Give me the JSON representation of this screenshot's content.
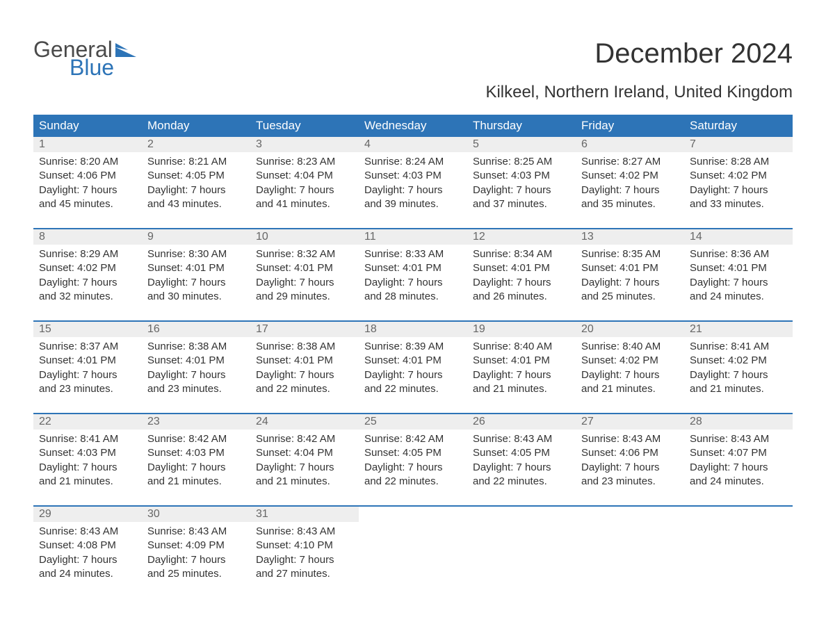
{
  "logo": {
    "general": "General",
    "blue": "Blue"
  },
  "header": {
    "title": "December 2024",
    "location": "Kilkeel, Northern Ireland, United Kingdom"
  },
  "colors": {
    "header_bg": "#2d74b7",
    "header_text": "#ffffff",
    "daynum_bg": "#eeeeee",
    "daynum_text": "#666666",
    "body_text": "#333333",
    "logo_gray": "#4a4a4a",
    "logo_blue": "#2d74b7"
  },
  "weekdays": [
    "Sunday",
    "Monday",
    "Tuesday",
    "Wednesday",
    "Thursday",
    "Friday",
    "Saturday"
  ],
  "labels": {
    "sunrise": "Sunrise:",
    "sunset": "Sunset:",
    "daylight": "Daylight:"
  },
  "days": [
    {
      "n": "1",
      "sr": "8:20 AM",
      "ss": "4:06 PM",
      "dl1": "7 hours",
      "dl2": "and 45 minutes."
    },
    {
      "n": "2",
      "sr": "8:21 AM",
      "ss": "4:05 PM",
      "dl1": "7 hours",
      "dl2": "and 43 minutes."
    },
    {
      "n": "3",
      "sr": "8:23 AM",
      "ss": "4:04 PM",
      "dl1": "7 hours",
      "dl2": "and 41 minutes."
    },
    {
      "n": "4",
      "sr": "8:24 AM",
      "ss": "4:03 PM",
      "dl1": "7 hours",
      "dl2": "and 39 minutes."
    },
    {
      "n": "5",
      "sr": "8:25 AM",
      "ss": "4:03 PM",
      "dl1": "7 hours",
      "dl2": "and 37 minutes."
    },
    {
      "n": "6",
      "sr": "8:27 AM",
      "ss": "4:02 PM",
      "dl1": "7 hours",
      "dl2": "and 35 minutes."
    },
    {
      "n": "7",
      "sr": "8:28 AM",
      "ss": "4:02 PM",
      "dl1": "7 hours",
      "dl2": "and 33 minutes."
    },
    {
      "n": "8",
      "sr": "8:29 AM",
      "ss": "4:02 PM",
      "dl1": "7 hours",
      "dl2": "and 32 minutes."
    },
    {
      "n": "9",
      "sr": "8:30 AM",
      "ss": "4:01 PM",
      "dl1": "7 hours",
      "dl2": "and 30 minutes."
    },
    {
      "n": "10",
      "sr": "8:32 AM",
      "ss": "4:01 PM",
      "dl1": "7 hours",
      "dl2": "and 29 minutes."
    },
    {
      "n": "11",
      "sr": "8:33 AM",
      "ss": "4:01 PM",
      "dl1": "7 hours",
      "dl2": "and 28 minutes."
    },
    {
      "n": "12",
      "sr": "8:34 AM",
      "ss": "4:01 PM",
      "dl1": "7 hours",
      "dl2": "and 26 minutes."
    },
    {
      "n": "13",
      "sr": "8:35 AM",
      "ss": "4:01 PM",
      "dl1": "7 hours",
      "dl2": "and 25 minutes."
    },
    {
      "n": "14",
      "sr": "8:36 AM",
      "ss": "4:01 PM",
      "dl1": "7 hours",
      "dl2": "and 24 minutes."
    },
    {
      "n": "15",
      "sr": "8:37 AM",
      "ss": "4:01 PM",
      "dl1": "7 hours",
      "dl2": "and 23 minutes."
    },
    {
      "n": "16",
      "sr": "8:38 AM",
      "ss": "4:01 PM",
      "dl1": "7 hours",
      "dl2": "and 23 minutes."
    },
    {
      "n": "17",
      "sr": "8:38 AM",
      "ss": "4:01 PM",
      "dl1": "7 hours",
      "dl2": "and 22 minutes."
    },
    {
      "n": "18",
      "sr": "8:39 AM",
      "ss": "4:01 PM",
      "dl1": "7 hours",
      "dl2": "and 22 minutes."
    },
    {
      "n": "19",
      "sr": "8:40 AM",
      "ss": "4:01 PM",
      "dl1": "7 hours",
      "dl2": "and 21 minutes."
    },
    {
      "n": "20",
      "sr": "8:40 AM",
      "ss": "4:02 PM",
      "dl1": "7 hours",
      "dl2": "and 21 minutes."
    },
    {
      "n": "21",
      "sr": "8:41 AM",
      "ss": "4:02 PM",
      "dl1": "7 hours",
      "dl2": "and 21 minutes."
    },
    {
      "n": "22",
      "sr": "8:41 AM",
      "ss": "4:03 PM",
      "dl1": "7 hours",
      "dl2": "and 21 minutes."
    },
    {
      "n": "23",
      "sr": "8:42 AM",
      "ss": "4:03 PM",
      "dl1": "7 hours",
      "dl2": "and 21 minutes."
    },
    {
      "n": "24",
      "sr": "8:42 AM",
      "ss": "4:04 PM",
      "dl1": "7 hours",
      "dl2": "and 21 minutes."
    },
    {
      "n": "25",
      "sr": "8:42 AM",
      "ss": "4:05 PM",
      "dl1": "7 hours",
      "dl2": "and 22 minutes."
    },
    {
      "n": "26",
      "sr": "8:43 AM",
      "ss": "4:05 PM",
      "dl1": "7 hours",
      "dl2": "and 22 minutes."
    },
    {
      "n": "27",
      "sr": "8:43 AM",
      "ss": "4:06 PM",
      "dl1": "7 hours",
      "dl2": "and 23 minutes."
    },
    {
      "n": "28",
      "sr": "8:43 AM",
      "ss": "4:07 PM",
      "dl1": "7 hours",
      "dl2": "and 24 minutes."
    },
    {
      "n": "29",
      "sr": "8:43 AM",
      "ss": "4:08 PM",
      "dl1": "7 hours",
      "dl2": "and 24 minutes."
    },
    {
      "n": "30",
      "sr": "8:43 AM",
      "ss": "4:09 PM",
      "dl1": "7 hours",
      "dl2": "and 25 minutes."
    },
    {
      "n": "31",
      "sr": "8:43 AM",
      "ss": "4:10 PM",
      "dl1": "7 hours",
      "dl2": "and 27 minutes."
    }
  ]
}
